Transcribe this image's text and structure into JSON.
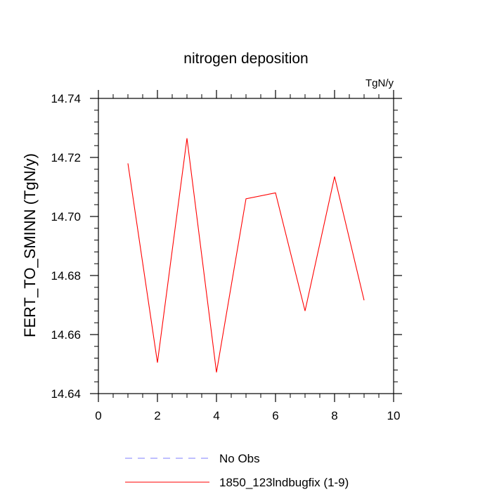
{
  "chart_data": {
    "type": "line",
    "title": "nitrogen deposition",
    "units_label": "TgN/y",
    "xlabel": "",
    "ylabel": "FERT_TO_SMINN  (TgN/y)",
    "xlim": [
      0,
      10
    ],
    "ylim": [
      14.64,
      14.74
    ],
    "x_ticks": [
      0,
      2,
      4,
      6,
      8,
      10
    ],
    "x_tick_labels": [
      "0",
      "2",
      "4",
      "6",
      "8",
      "10"
    ],
    "y_ticks": [
      14.64,
      14.66,
      14.68,
      14.7,
      14.72,
      14.74
    ],
    "y_tick_labels": [
      "14.64",
      "14.66",
      "14.68",
      "14.70",
      "14.72",
      "14.74"
    ],
    "grid": false,
    "series": [
      {
        "name": "1850_123lndbugfix (1-9)",
        "color": "#ff0000",
        "dash": "solid",
        "x": [
          1,
          2,
          3,
          4,
          5,
          6,
          7,
          8,
          9
        ],
        "values": [
          14.718,
          14.6505,
          14.7265,
          14.6472,
          14.706,
          14.708,
          14.668,
          14.7135,
          14.6716
        ]
      },
      {
        "name": "No Obs",
        "color": "#7f7fff",
        "dash": "dashed",
        "x": [],
        "values": []
      }
    ],
    "legend": [
      {
        "label": "No Obs",
        "color": "#7f7fff",
        "dash": "dashed"
      },
      {
        "label": "1850_123lndbugfix (1-9)",
        "color": "#ff0000",
        "dash": "solid"
      }
    ],
    "legend_position": "bottom"
  }
}
